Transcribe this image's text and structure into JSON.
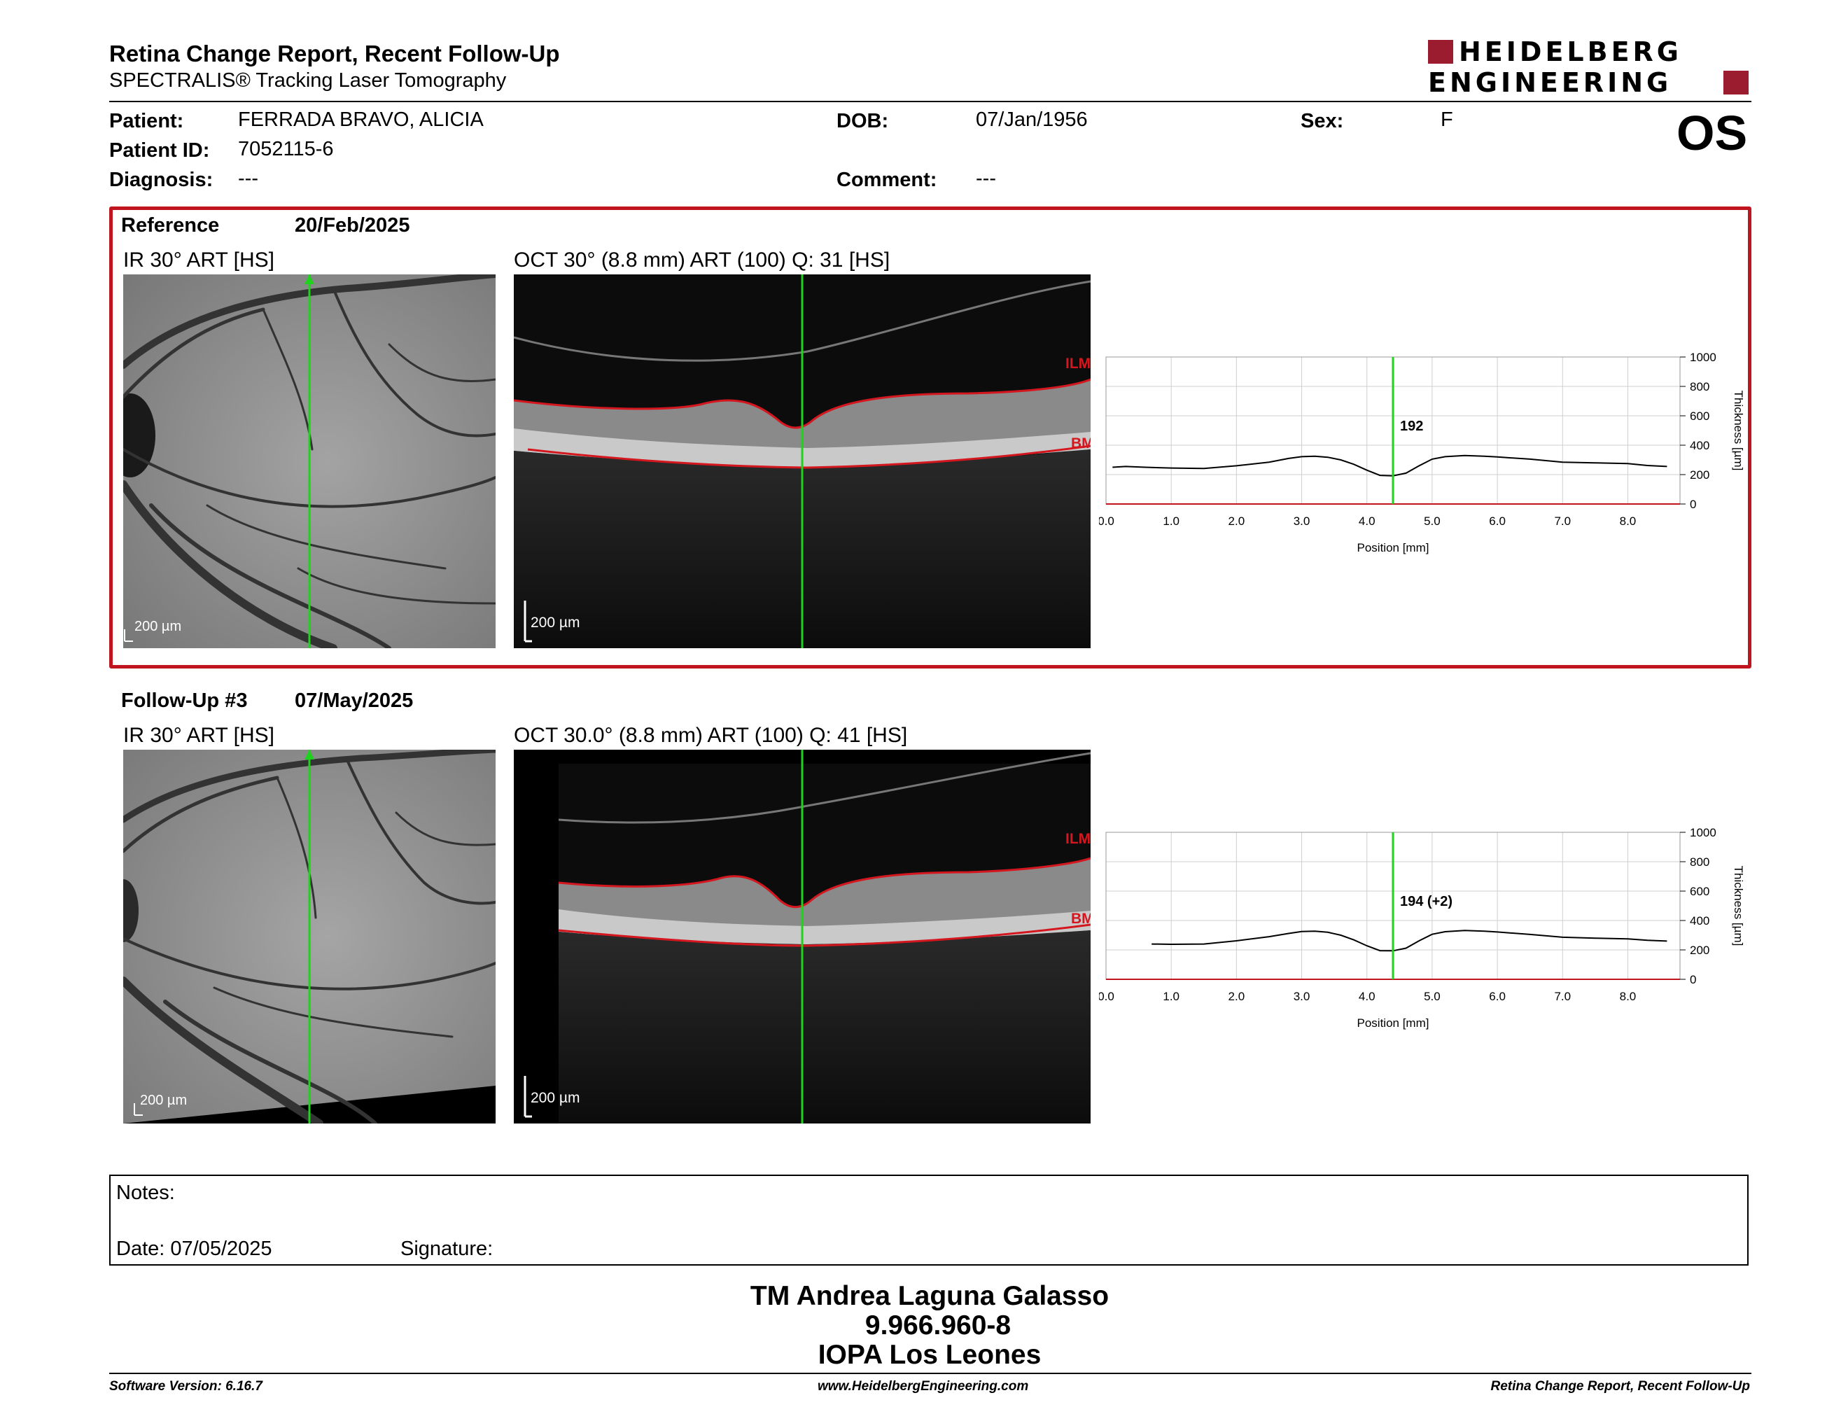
{
  "header": {
    "title": "Retina Change Report, Recent Follow-Up",
    "subtitle": "SPECTRALIS® Tracking Laser Tomography",
    "logo_line1": "HEIDELBERG",
    "logo_line2": "ENGINEERING",
    "eye": "OS"
  },
  "patient": {
    "name_label": "Patient:",
    "name": "FERRADA BRAVO, ALICIA",
    "id_label": "Patient ID:",
    "id": "7052115-6",
    "diagnosis_label": "Diagnosis:",
    "diagnosis": "---",
    "dob_label": "DOB:",
    "dob": "07/Jan/1956",
    "comment_label": "Comment:",
    "comment": "---",
    "sex_label": "Sex:",
    "sex": "F"
  },
  "reference": {
    "label": "Reference",
    "date": "20/Feb/2025",
    "ir_caption": "IR 30° ART [HS]",
    "oct_caption": "OCT 30° (8.8 mm) ART (100) Q: 31 [HS]",
    "scale_ir": "200 µm",
    "scale_oct": "200 µm",
    "ilm": "ILM",
    "bm": "BM"
  },
  "followup": {
    "label": "Follow-Up #3",
    "date": "07/May/2025",
    "ir_caption": "IR 30° ART [HS]",
    "oct_caption": "OCT 30.0° (8.8 mm) ART (100) Q: 41 [HS]",
    "scale_ir": "200 µm",
    "scale_oct": "200 µm",
    "ilm": "ILM",
    "bm": "BM"
  },
  "chart_data": [
    {
      "type": "line",
      "title": "",
      "xlabel": "Position [mm]",
      "ylabel": "Thickness [µm]",
      "xlim": [
        0,
        8.8
      ],
      "ylim": [
        0,
        1000
      ],
      "xticks": [
        "0.0",
        "1.0",
        "2.0",
        "3.0",
        "4.0",
        "5.0",
        "6.0",
        "7.0",
        "8.0"
      ],
      "yticks": [
        "0",
        "200",
        "400",
        "600",
        "800",
        "1000"
      ],
      "marker_x": 4.4,
      "annotation": "192",
      "grid": true,
      "series": [
        {
          "x": [
            0.1,
            0.3,
            0.6,
            1.0,
            1.5,
            2.0,
            2.5,
            2.8,
            3.0,
            3.2,
            3.4,
            3.6,
            3.8,
            4.0,
            4.2,
            4.4,
            4.6,
            4.8,
            5.0,
            5.2,
            5.5,
            5.8,
            6.0,
            6.5,
            7.0,
            7.5,
            8.0,
            8.3,
            8.6
          ],
          "y": [
            250,
            255,
            250,
            245,
            242,
            260,
            285,
            310,
            322,
            325,
            318,
            300,
            270,
            230,
            195,
            192,
            210,
            260,
            305,
            322,
            330,
            325,
            320,
            305,
            285,
            280,
            275,
            262,
            255
          ]
        }
      ]
    },
    {
      "type": "line",
      "title": "",
      "xlabel": "Position [mm]",
      "ylabel": "Thickness [µm]",
      "xlim": [
        0,
        8.8
      ],
      "ylim": [
        0,
        1000
      ],
      "xticks": [
        "0.0",
        "1.0",
        "2.0",
        "3.0",
        "4.0",
        "5.0",
        "6.0",
        "7.0",
        "8.0"
      ],
      "yticks": [
        "0",
        "200",
        "400",
        "600",
        "800",
        "1000"
      ],
      "marker_x": 4.4,
      "annotation": "194 (+2)",
      "grid": true,
      "series": [
        {
          "x": [
            0.7,
            1.0,
            1.5,
            2.0,
            2.5,
            2.8,
            3.0,
            3.2,
            3.4,
            3.6,
            3.8,
            4.0,
            4.2,
            4.4,
            4.6,
            4.8,
            5.0,
            5.2,
            5.5,
            5.8,
            6.0,
            6.5,
            7.0,
            7.5,
            8.0,
            8.3,
            8.6
          ],
          "y": [
            240,
            238,
            240,
            262,
            290,
            312,
            325,
            327,
            320,
            300,
            268,
            228,
            195,
            194,
            212,
            262,
            306,
            324,
            332,
            327,
            322,
            305,
            286,
            280,
            275,
            265,
            260
          ]
        }
      ]
    }
  ],
  "notes": {
    "label": "Notes:",
    "date_label": "Date: 07/05/2025",
    "signature_label": "Signature:"
  },
  "signature": {
    "name": "TM Andrea Laguna Galasso",
    "rut": "9.966.960-8",
    "org": "IOPA Los Leones"
  },
  "footer": {
    "left": "Software Version: 6.16.7",
    "center": "www.HeidelbergEngineering.com",
    "right": "Retina Change Report, Recent Follow-Up"
  },
  "colors": {
    "accent_red": "#c0141f",
    "brand": "#9b1c2e",
    "scan_line": "#1ed21e"
  }
}
